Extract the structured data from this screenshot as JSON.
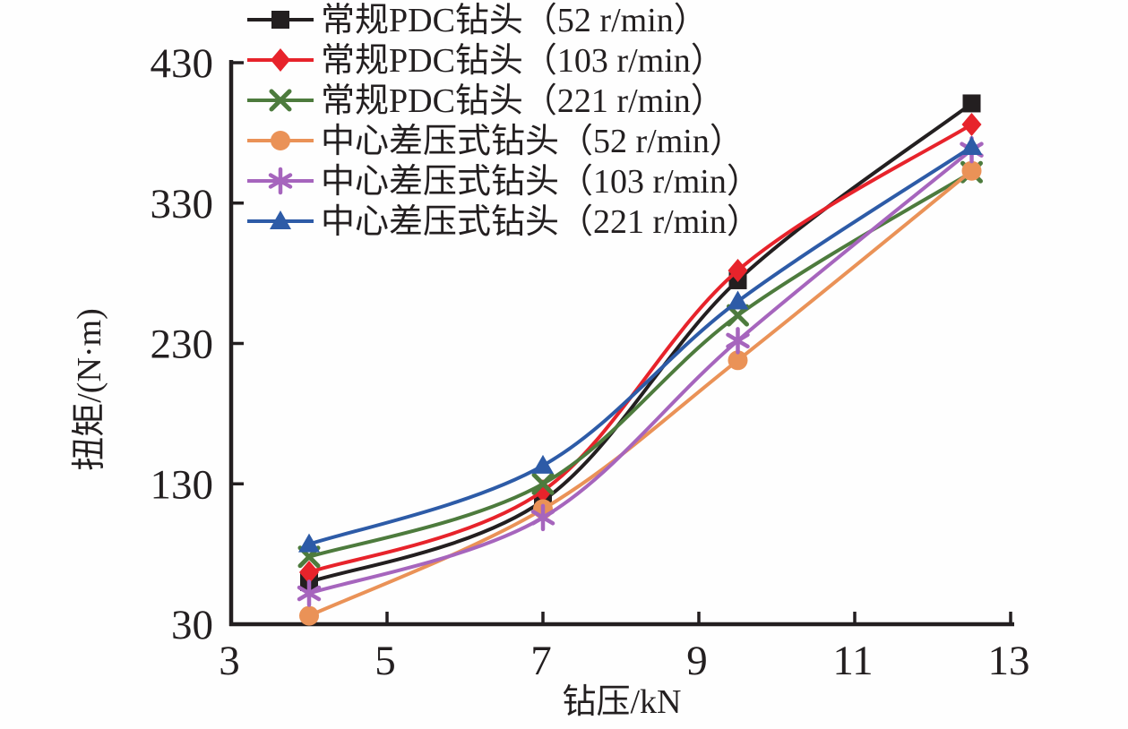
{
  "figure": {
    "background": "#fefefe",
    "axis_color": "#231f20"
  },
  "chart_data": {
    "type": "line",
    "title": "",
    "xlabel": "钻压/kN",
    "ylabel": "扭矩/(N·m)",
    "xlim": [
      3,
      13
    ],
    "ylim": [
      30,
      430
    ],
    "xticks": [
      3,
      5,
      7,
      9,
      11,
      13
    ],
    "yticks": [
      30,
      130,
      230,
      330,
      430
    ],
    "grid": false,
    "legend_position": "top-left-inside",
    "curve_style": "smooth-spline",
    "x": [
      4,
      7,
      9.5,
      12.5
    ],
    "series": [
      {
        "name": "常规PDC钻头（52 r/min）",
        "color": "#231f20",
        "marker": "square",
        "values": [
          60,
          118,
          275,
          401
        ]
      },
      {
        "name": "常规PDC钻头（103 r/min）",
        "color": "#e7232b",
        "marker": "diamond",
        "values": [
          67,
          125,
          282,
          386
        ]
      },
      {
        "name": "常规PDC钻头（221 r/min）",
        "color": "#4d7b3d",
        "marker": "x",
        "values": [
          78,
          130,
          250,
          352
        ]
      },
      {
        "name": "中心差压式钻头（52 r/min）",
        "color": "#ea9257",
        "marker": "circle",
        "values": [
          36,
          112,
          218,
          353
        ]
      },
      {
        "name": "中心差压式钻头（103 r/min）",
        "color": "#a665bd",
        "marker": "asterisk",
        "values": [
          52,
          106,
          232,
          368
        ]
      },
      {
        "name": "中心差压式钻头（221 r/min）",
        "color": "#2d5ba7",
        "marker": "triangle",
        "values": [
          87,
          143,
          260,
          370
        ]
      }
    ]
  }
}
